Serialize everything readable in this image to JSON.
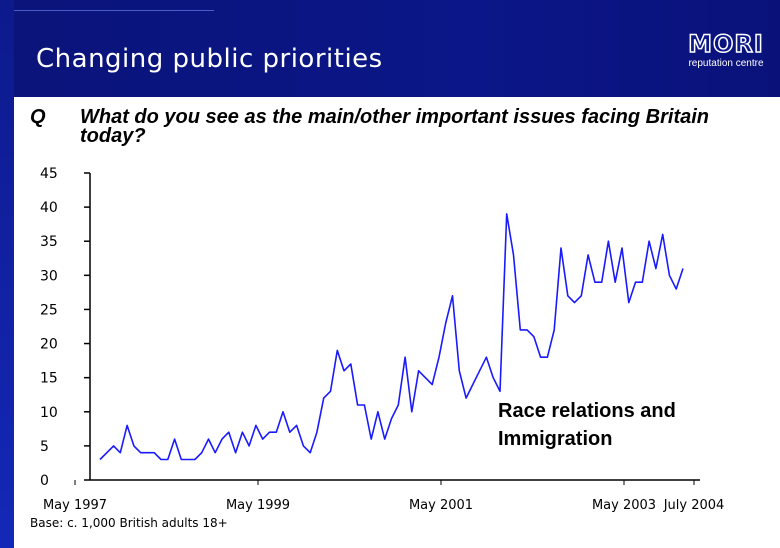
{
  "header": {
    "title": "Changing public priorities",
    "logo": {
      "word": "MORI",
      "subtitle": "reputation centre"
    }
  },
  "question": {
    "label": "Q",
    "text": "What do you see as the main/other important issues facing Britain today?"
  },
  "base_note": "Base: c. 1,000 British adults 18+",
  "colors": {
    "header": "#0b1688",
    "line": "#1a1aff"
  },
  "chart_data": {
    "type": "line",
    "title": "",
    "xlabel": "",
    "ylabel": "",
    "ylim": [
      0,
      45
    ],
    "yticks": [
      "0",
      "5",
      "10",
      "15",
      "20",
      "25",
      "30",
      "35",
      "40",
      "45"
    ],
    "xticks": [
      "May 1997",
      "May 1999",
      "May 2001",
      "May 2003",
      "July 2004"
    ],
    "grid": false,
    "annotation": [
      "Race relations and",
      "Immigration"
    ],
    "series": [
      {
        "name": "",
        "values": [
          3,
          4,
          5,
          4,
          8,
          5,
          4,
          4,
          4,
          3,
          3,
          6,
          3,
          3,
          3,
          4,
          6,
          4,
          6,
          7,
          4,
          7,
          5,
          8,
          6,
          7,
          7,
          10,
          7,
          8,
          5,
          4,
          7,
          12,
          13,
          19,
          16,
          17,
          11,
          11,
          6,
          10,
          6,
          9,
          11,
          18,
          10,
          16,
          15,
          14,
          18,
          23,
          27,
          16,
          12,
          14,
          16,
          18,
          15,
          13,
          39,
          33,
          22,
          22,
          21,
          18,
          18,
          22,
          34,
          27,
          26,
          27,
          33,
          29,
          29,
          35,
          29,
          34,
          26,
          29,
          29,
          35,
          31,
          36,
          30,
          28,
          31
        ]
      }
    ]
  }
}
